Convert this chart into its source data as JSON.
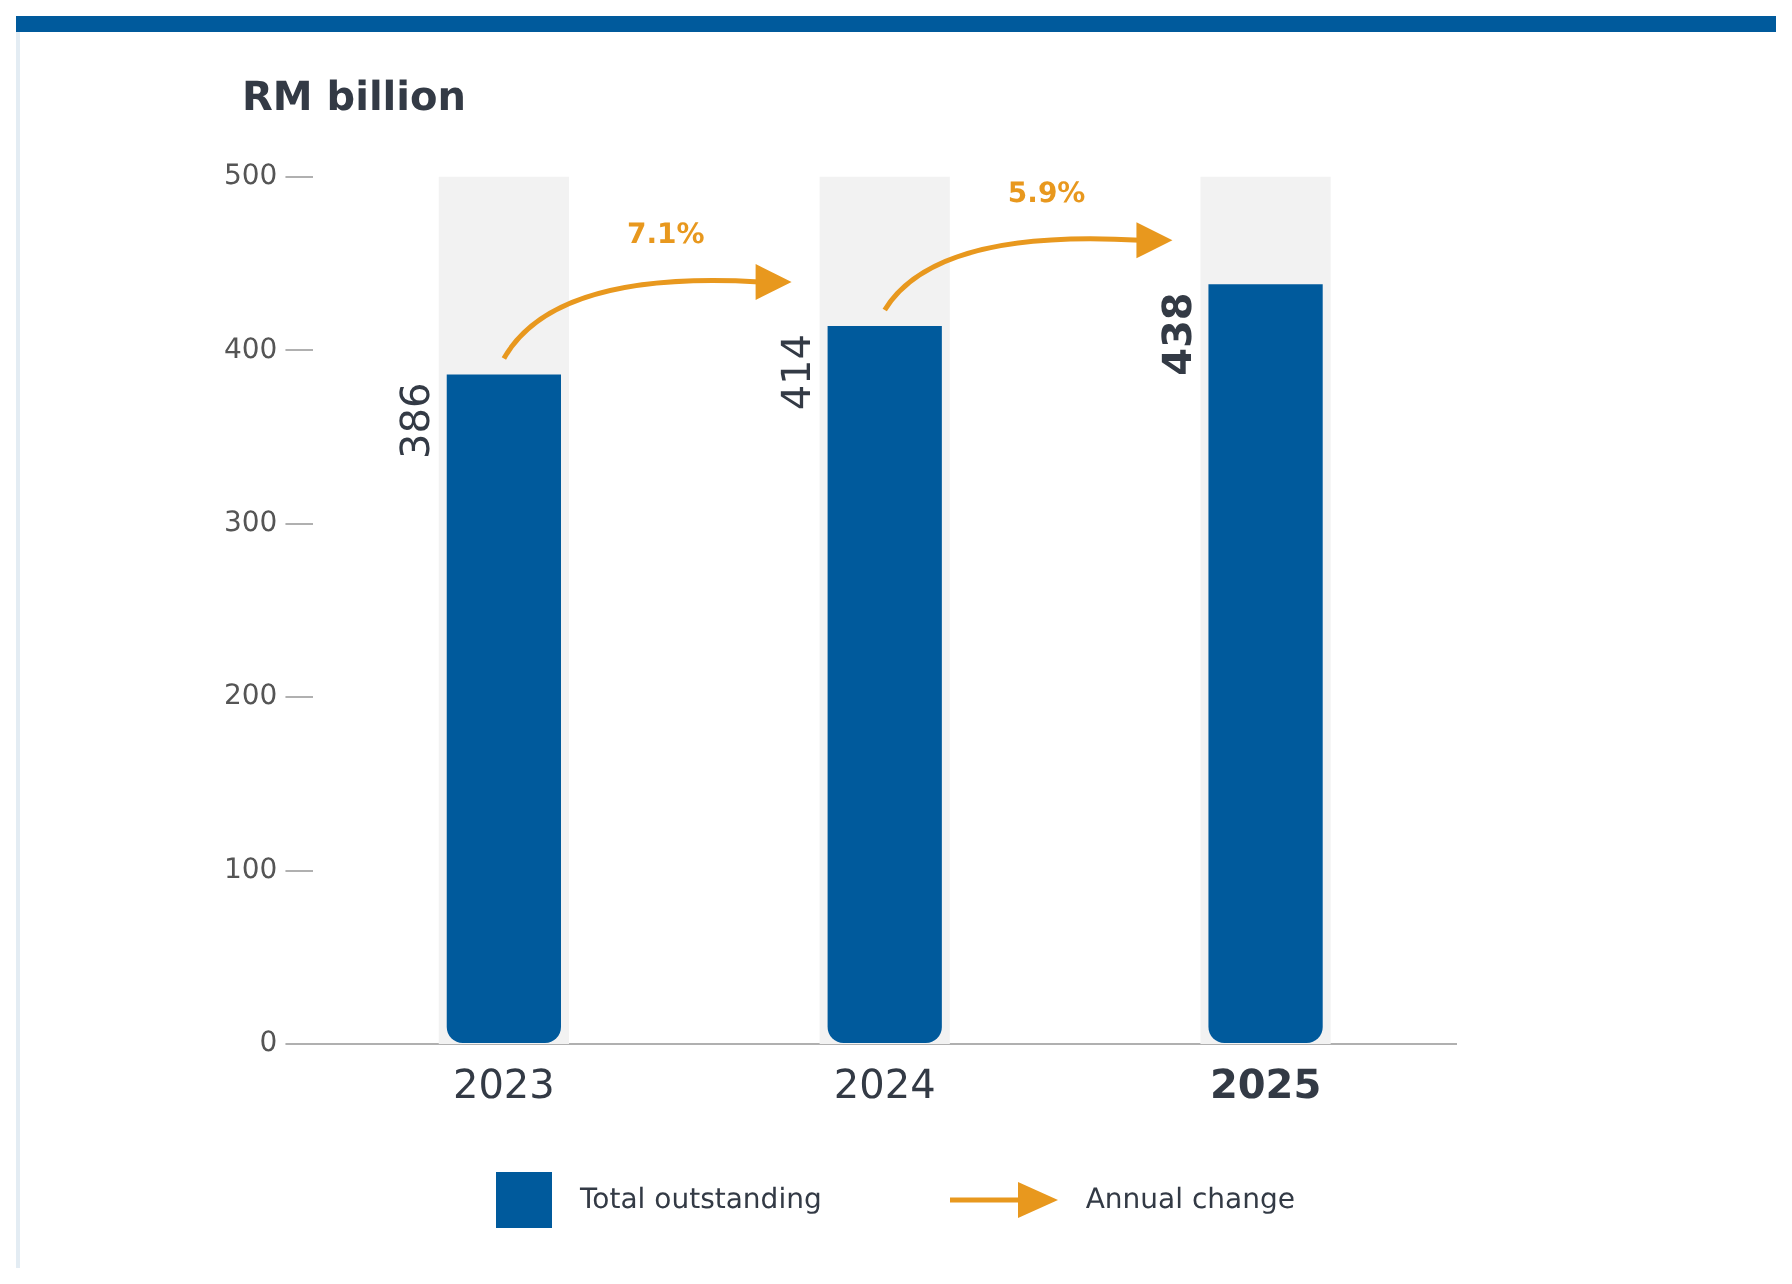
{
  "chart_data": {
    "type": "bar",
    "title": "RM billion",
    "categories": [
      "2023",
      "2024",
      "2025"
    ],
    "series": [
      {
        "name": "Total outstanding",
        "color": "#005a9c",
        "values": [
          386,
          414,
          438
        ]
      }
    ],
    "ylim": [
      0,
      500
    ],
    "yticks": [
      0,
      100,
      200,
      300,
      400,
      500
    ],
    "grid": false,
    "legend": "bottom",
    "data_labels": true,
    "annotations": [
      "7.1%",
      "5.9%",
      "Annual change"
    ]
  }
}
